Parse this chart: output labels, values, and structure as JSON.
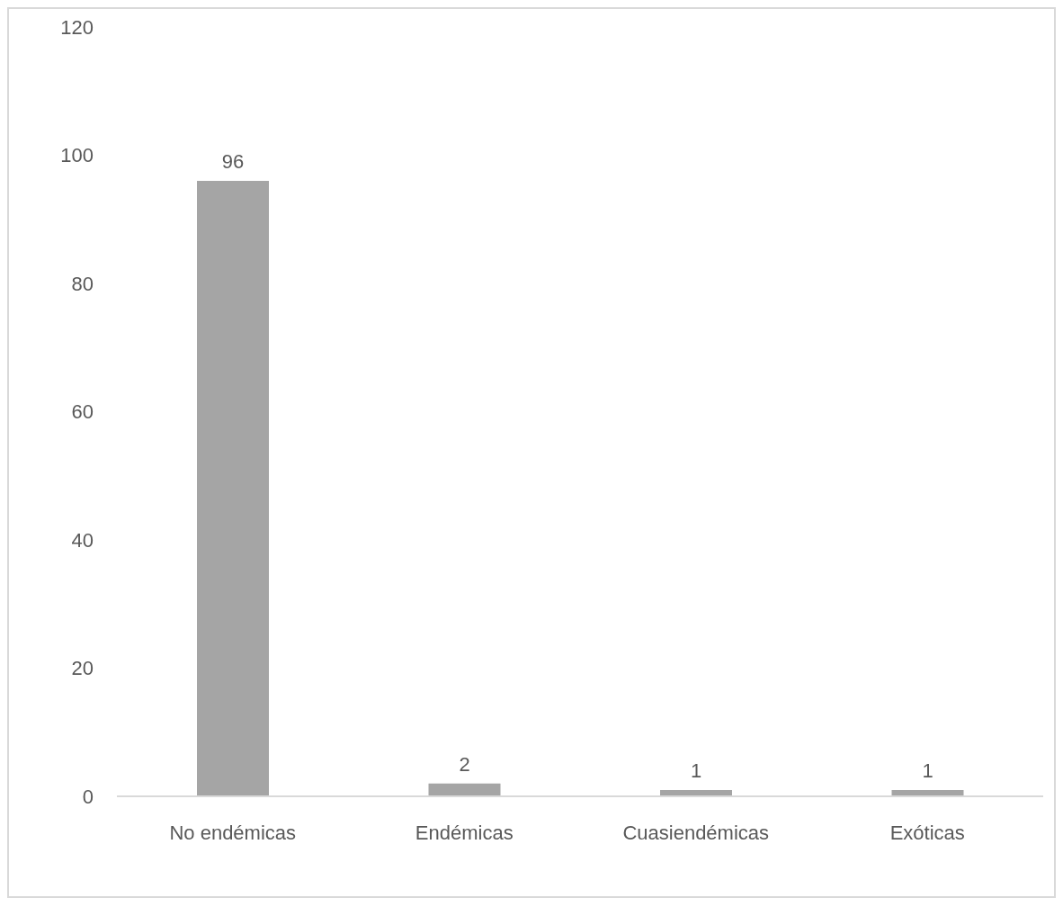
{
  "chart_data": {
    "type": "bar",
    "categories": [
      "No endémicas",
      "Endémicas",
      "Cuasiendémicas",
      "Exóticas"
    ],
    "values": [
      96,
      2,
      1,
      1
    ],
    "color": "#a5a5a5",
    "ylim": [
      0,
      120
    ],
    "yticks": [
      0,
      20,
      40,
      60,
      80,
      100,
      120
    ],
    "data_labels": true
  }
}
